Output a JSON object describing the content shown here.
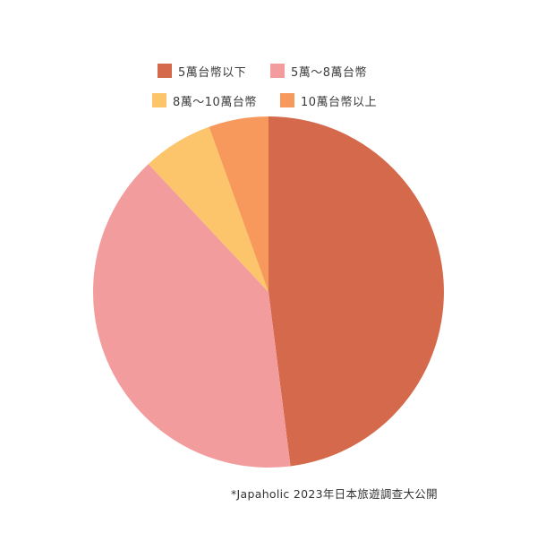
{
  "chart_data": {
    "type": "pie",
    "categories": [
      "5萬台幣以下",
      "5萬～8萬台幣",
      "8萬～10萬台幣",
      "10萬台幣以上"
    ],
    "values": [
      48,
      40,
      6.5,
      5.5
    ],
    "colors": [
      "#d4694b",
      "#f29c9d",
      "#fcc56b",
      "#f7995c"
    ],
    "start": "top",
    "direction": "clockwise",
    "legend_position": "top"
  },
  "source_note": "*Japaholic 2023年日本旅遊調查大公開"
}
